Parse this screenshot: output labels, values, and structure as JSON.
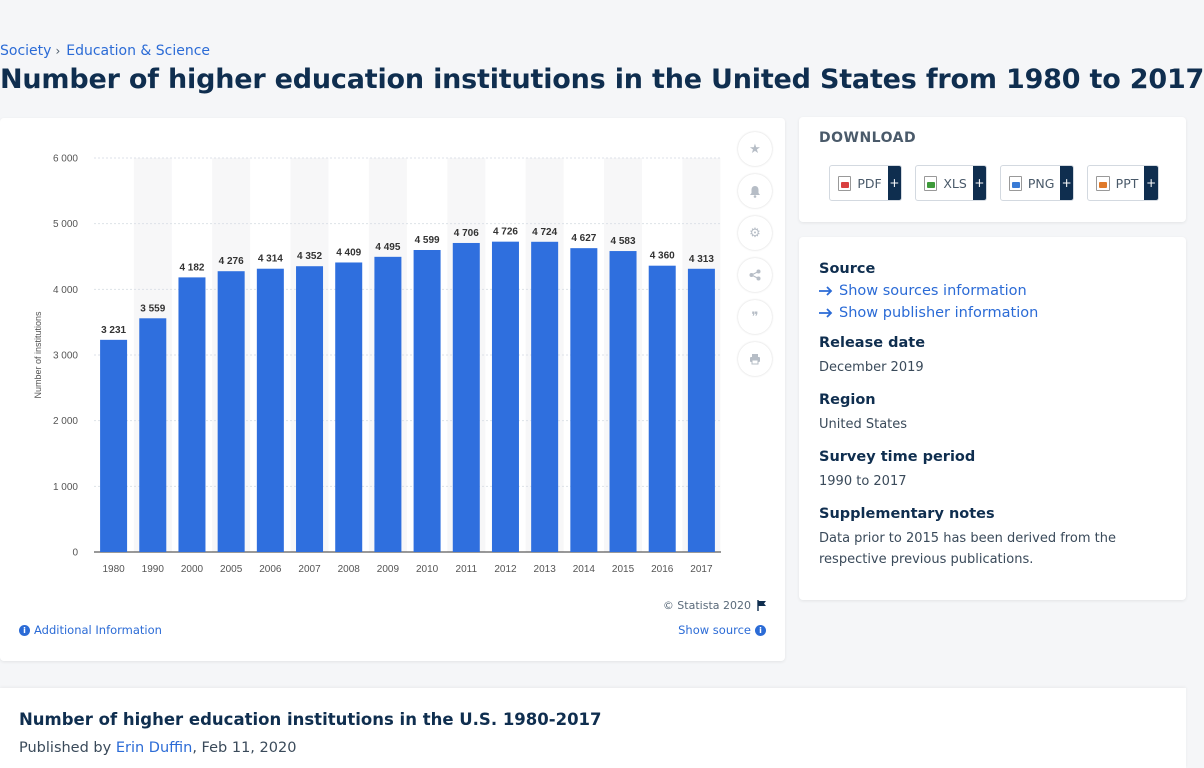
{
  "breadcrumb": {
    "items": [
      "Society",
      "Education & Science"
    ],
    "separator": "›"
  },
  "page_title": "Number of higher education institutions in the United States from 1980 to 2017",
  "chart_data": {
    "type": "bar",
    "categories": [
      "1980",
      "1990",
      "2000",
      "2005",
      "2006",
      "2007",
      "2008",
      "2009",
      "2010",
      "2011",
      "2012",
      "2013",
      "2014",
      "2015",
      "2016",
      "2017"
    ],
    "values": [
      3231,
      3559,
      4182,
      4276,
      4314,
      4352,
      4409,
      4495,
      4599,
      4706,
      4726,
      4724,
      4627,
      4583,
      4360,
      4313
    ],
    "value_labels": [
      "3 231",
      "3 559",
      "4 182",
      "4 276",
      "4 314",
      "4 352",
      "4 409",
      "4 495",
      "4 599",
      "4 706",
      "4 726",
      "4 724",
      "4 627",
      "4 583",
      "4 360",
      "4 313"
    ],
    "ylabel": "Number of institutions",
    "ylim": [
      0,
      6000
    ],
    "yticks": [
      0,
      1000,
      2000,
      3000,
      4000,
      5000,
      6000
    ],
    "ytick_labels": [
      "0",
      "1 000",
      "2 000",
      "3 000",
      "4 000",
      "5 000",
      "6 000"
    ],
    "bar_color": "#2f6fde",
    "grid": true
  },
  "chart_tools": {
    "favorite_icon": "star-icon",
    "alert_icon": "bell-icon",
    "settings_icon": "gear-icon",
    "share_icon": "share-icon",
    "cite_icon": "quote-icon",
    "print_icon": "print-icon"
  },
  "chart_footer": {
    "copyright": "© Statista 2020",
    "additional_info": "Additional Information",
    "show_source": "Show source"
  },
  "download": {
    "title": "DOWNLOAD",
    "buttons": [
      {
        "label": "PDF",
        "plus": "+"
      },
      {
        "label": "XLS",
        "plus": "+"
      },
      {
        "label": "PNG",
        "plus": "+"
      },
      {
        "label": "PPT",
        "plus": "+"
      }
    ]
  },
  "meta": {
    "source_heading": "Source",
    "show_sources": "Show sources information",
    "show_publisher": "Show publisher information",
    "release_heading": "Release date",
    "release_value": "December 2019",
    "region_heading": "Region",
    "region_value": "United States",
    "period_heading": "Survey time period",
    "period_value": "1990 to 2017",
    "notes_heading": "Supplementary notes",
    "notes_value": "Data prior to 2015 has been derived from the respective previous publications."
  },
  "bottom": {
    "title": "Number of higher education institutions in the U.S. 1980-2017",
    "published_prefix": "Published by",
    "author": "Erin Duffin",
    "date": ", Feb 11, 2020"
  }
}
